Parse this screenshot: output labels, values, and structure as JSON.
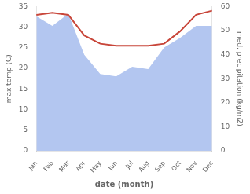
{
  "chart_data": {
    "type": "line",
    "xlabel": "date (month)",
    "ylabel": "max temp (C)",
    "y2label": "med. precipitation (kg/m2)",
    "categories": [
      "Jan",
      "Feb",
      "Mar",
      "Apr",
      "May",
      "Jun",
      "Jul",
      "Aug",
      "Sep",
      "Oct",
      "Nov",
      "Dec"
    ],
    "series": [
      {
        "type": "line",
        "color": "#c8463a",
        "values": [
          33.0,
          33.5,
          33.0,
          28.0,
          26.0,
          25.5,
          25.5,
          25.5,
          26.0,
          29.0,
          33.0,
          34.0
        ]
      },
      {
        "type": "area",
        "color": "#b3c6f0",
        "axis": "y2",
        "values": [
          56.0,
          52.0,
          57.0,
          40.0,
          32.0,
          31.0,
          35.0,
          34.0,
          43.0,
          47.0,
          52.0,
          52.0
        ]
      }
    ],
    "ylim": [
      0,
      35
    ],
    "yticks": [
      0,
      5,
      10,
      15,
      20,
      25,
      30,
      35
    ],
    "y2lim": [
      0,
      60
    ],
    "y2ticks": [
      0,
      10,
      20,
      30,
      40,
      50,
      60
    ],
    "grid": false
  }
}
